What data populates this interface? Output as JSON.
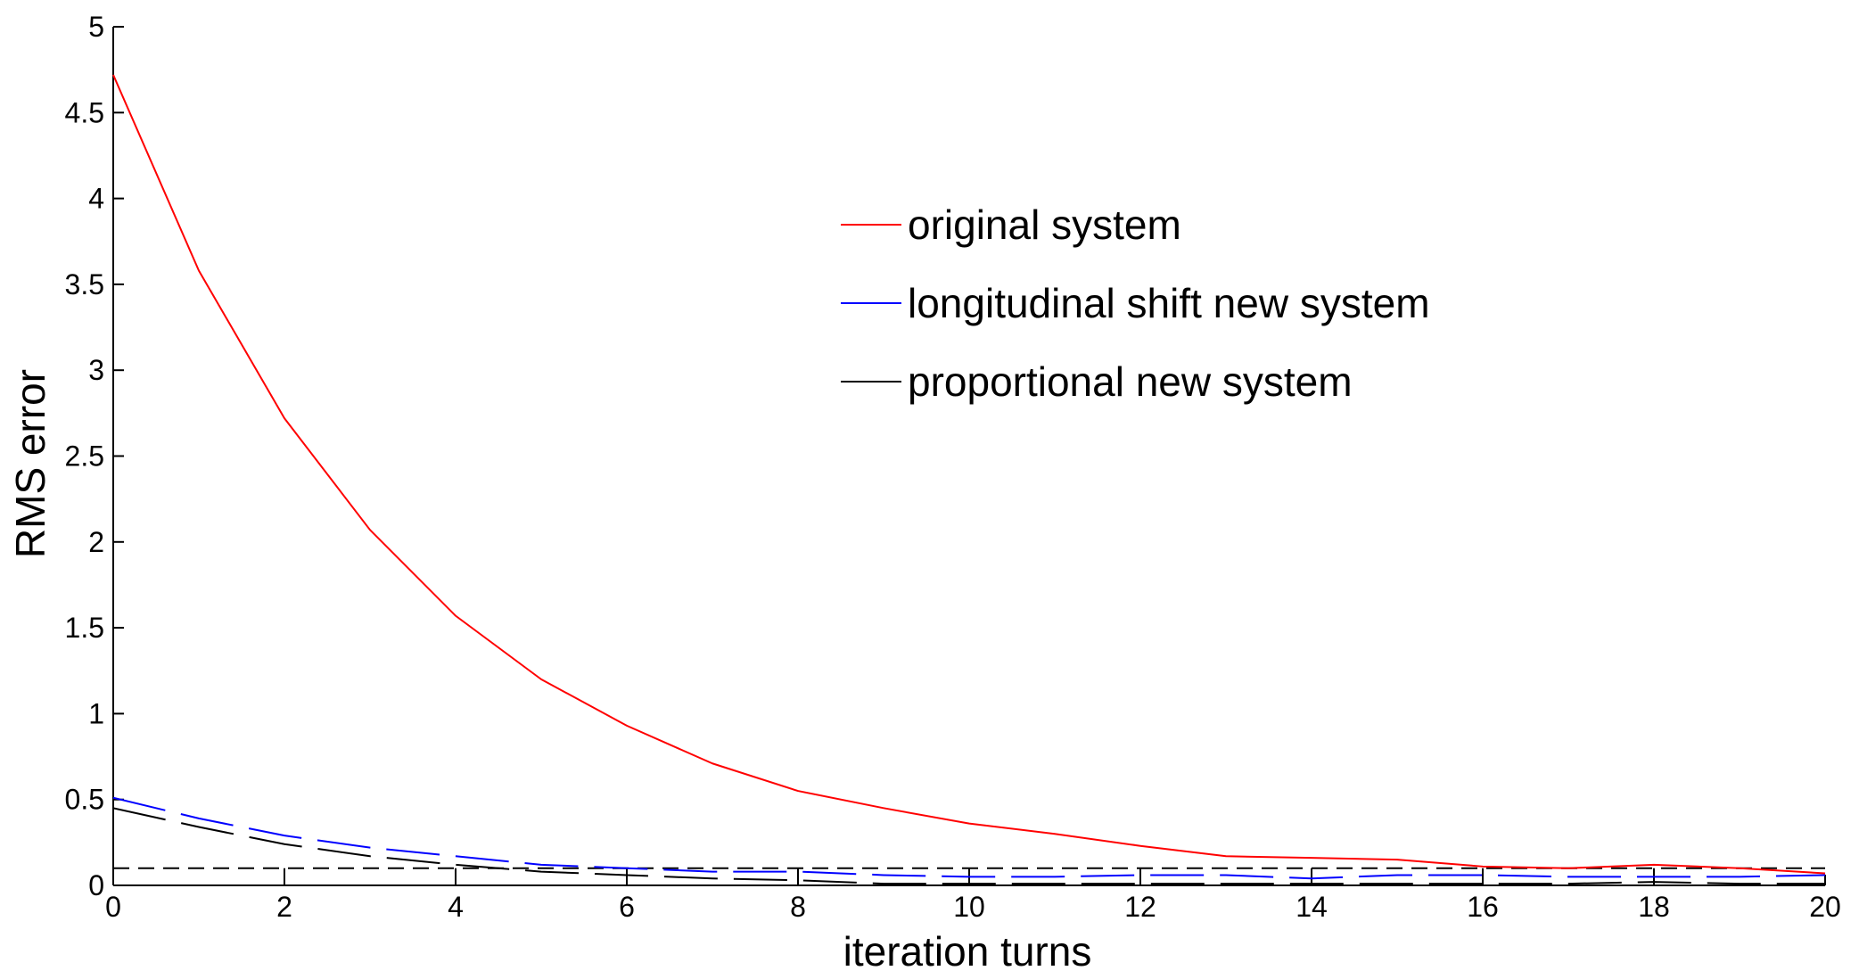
{
  "chart_data": {
    "type": "line",
    "xlabel": "iteration turns",
    "ylabel": "RMS error",
    "xlim": [
      0,
      20
    ],
    "ylim": [
      0,
      5
    ],
    "xticks": [
      0,
      2,
      4,
      6,
      8,
      10,
      12,
      14,
      16,
      18,
      20
    ],
    "yticks": [
      0,
      0.5,
      1,
      1.5,
      2,
      2.5,
      3,
      3.5,
      4,
      4.5,
      5
    ],
    "ytick_labels": [
      "0",
      "0.5",
      "1",
      "1.5",
      "2",
      "2.5",
      "3",
      "3.5",
      "4",
      "4.5",
      "5"
    ],
    "grid": false,
    "legend_position": "upper-center-right",
    "x": [
      0,
      1,
      2,
      3,
      4,
      5,
      6,
      7,
      8,
      9,
      10,
      11,
      12,
      13,
      14,
      15,
      16,
      17,
      18,
      19,
      20
    ],
    "series": [
      {
        "name": "original system",
        "color": "#ff0000",
        "style": "solid",
        "values": [
          4.72,
          3.58,
          2.72,
          2.07,
          1.57,
          1.2,
          0.93,
          0.71,
          0.55,
          0.45,
          0.36,
          0.3,
          0.23,
          0.17,
          0.16,
          0.15,
          0.11,
          0.1,
          0.12,
          0.1,
          0.07
        ]
      },
      {
        "name": "longitudinal shift new system",
        "color": "#0000ff",
        "style": "dashed",
        "values": [
          0.51,
          0.39,
          0.29,
          0.22,
          0.17,
          0.12,
          0.1,
          0.08,
          0.08,
          0.06,
          0.05,
          0.05,
          0.06,
          0.06,
          0.04,
          0.06,
          0.06,
          0.05,
          0.05,
          0.05,
          0.06
        ]
      },
      {
        "name": "proportional new system",
        "color": "#000000",
        "style": "dashed",
        "values": [
          0.45,
          0.34,
          0.24,
          0.17,
          0.12,
          0.08,
          0.06,
          0.04,
          0.03,
          0.01,
          0.01,
          0.01,
          0.01,
          0.01,
          0.01,
          0.01,
          0.01,
          0.01,
          0.02,
          0.01,
          0.01
        ]
      }
    ],
    "reference_line": {
      "y": 0.1,
      "color": "#000000",
      "style": "dashed"
    },
    "step_markers": {
      "x": [
        2,
        4,
        6,
        8,
        10,
        12,
        14,
        16,
        18
      ],
      "y": 0.1,
      "color": "#000000"
    }
  }
}
